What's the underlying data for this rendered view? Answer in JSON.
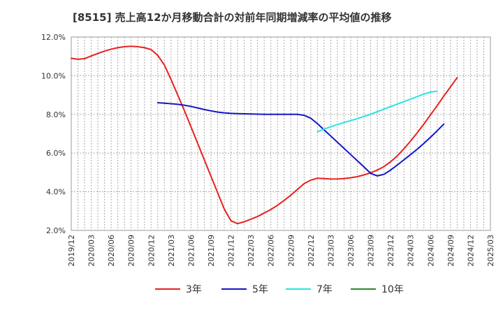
{
  "chart_data": {
    "type": "line",
    "title": "[8515]  売上高12か月移動合計の対前年同期増減率の平均値の推移",
    "xlabel": "",
    "ylabel": "",
    "ylim": [
      2.0,
      12.0
    ],
    "yticks": [
      "2.0%",
      "4.0%",
      "6.0%",
      "8.0%",
      "10.0%",
      "12.0%"
    ],
    "ytick_values": [
      2,
      4,
      6,
      8,
      10,
      12
    ],
    "xticks": [
      "2019/12",
      "2020/03",
      "2020/06",
      "2020/09",
      "2020/12",
      "2021/03",
      "2021/06",
      "2021/09",
      "2021/12",
      "2022/03",
      "2022/06",
      "2022/09",
      "2022/12",
      "2023/03",
      "2023/06",
      "2023/09",
      "2023/12",
      "2024/03",
      "2024/06",
      "2024/09",
      "2024/12",
      "2025/03"
    ],
    "grid": true,
    "legend_position": "bottom",
    "series": [
      {
        "name": "3年",
        "color": "#e8201f",
        "points": [
          [
            "2019/12",
            10.9
          ],
          [
            "2020/01",
            10.85
          ],
          [
            "2020/02",
            10.88
          ],
          [
            "2020/03",
            11.02
          ],
          [
            "2020/04",
            11.15
          ],
          [
            "2020/05",
            11.27
          ],
          [
            "2020/06",
            11.37
          ],
          [
            "2020/07",
            11.45
          ],
          [
            "2020/08",
            11.5
          ],
          [
            "2020/09",
            11.52
          ],
          [
            "2020/10",
            11.5
          ],
          [
            "2020/11",
            11.45
          ],
          [
            "2020/12",
            11.35
          ],
          [
            "2021/01",
            11.05
          ],
          [
            "2021/02",
            10.55
          ],
          [
            "2021/03",
            9.8
          ],
          [
            "2021/04",
            9.0
          ],
          [
            "2021/05",
            8.2
          ],
          [
            "2021/06",
            7.35
          ],
          [
            "2021/07",
            6.5
          ],
          [
            "2021/08",
            5.65
          ],
          [
            "2021/09",
            4.8
          ],
          [
            "2021/10",
            3.95
          ],
          [
            "2021/11",
            3.1
          ],
          [
            "2021/12",
            2.5
          ],
          [
            "2022/01",
            2.35
          ],
          [
            "2022/02",
            2.45
          ],
          [
            "2022/03",
            2.58
          ],
          [
            "2022/04",
            2.72
          ],
          [
            "2022/05",
            2.9
          ],
          [
            "2022/06",
            3.08
          ],
          [
            "2022/07",
            3.3
          ],
          [
            "2022/08",
            3.55
          ],
          [
            "2022/09",
            3.82
          ],
          [
            "2022/10",
            4.12
          ],
          [
            "2022/11",
            4.42
          ],
          [
            "2022/12",
            4.6
          ],
          [
            "2023/01",
            4.7
          ],
          [
            "2023/02",
            4.68
          ],
          [
            "2023/03",
            4.66
          ],
          [
            "2023/04",
            4.66
          ],
          [
            "2023/05",
            4.68
          ],
          [
            "2023/06",
            4.72
          ],
          [
            "2023/07",
            4.78
          ],
          [
            "2023/08",
            4.87
          ],
          [
            "2023/09",
            4.98
          ],
          [
            "2023/10",
            5.12
          ],
          [
            "2023/11",
            5.3
          ],
          [
            "2023/12",
            5.55
          ],
          [
            "2024/01",
            5.85
          ],
          [
            "2024/02",
            6.22
          ],
          [
            "2024/03",
            6.62
          ],
          [
            "2024/04",
            7.05
          ],
          [
            "2024/05",
            7.5
          ],
          [
            "2024/06",
            7.98
          ],
          [
            "2024/07",
            8.45
          ],
          [
            "2024/08",
            8.95
          ],
          [
            "2024/09",
            9.42
          ],
          [
            "2024/10",
            9.9
          ]
        ]
      },
      {
        "name": "5年",
        "color": "#1414c8",
        "points": [
          [
            "2021/01",
            8.6
          ],
          [
            "2021/02",
            8.58
          ],
          [
            "2021/03",
            8.55
          ],
          [
            "2021/04",
            8.52
          ],
          [
            "2021/05",
            8.47
          ],
          [
            "2021/06",
            8.41
          ],
          [
            "2021/07",
            8.33
          ],
          [
            "2021/08",
            8.25
          ],
          [
            "2021/09",
            8.18
          ],
          [
            "2021/10",
            8.12
          ],
          [
            "2021/11",
            8.08
          ],
          [
            "2021/12",
            8.05
          ],
          [
            "2022/01",
            8.04
          ],
          [
            "2022/02",
            8.03
          ],
          [
            "2022/03",
            8.02
          ],
          [
            "2022/04",
            8.01
          ],
          [
            "2022/05",
            8.0
          ],
          [
            "2022/06",
            8.0
          ],
          [
            "2022/07",
            8.0
          ],
          [
            "2022/08",
            8.0
          ],
          [
            "2022/09",
            8.0
          ],
          [
            "2022/10",
            8.0
          ],
          [
            "2022/11",
            7.95
          ],
          [
            "2022/12",
            7.8
          ],
          [
            "2023/01",
            7.52
          ],
          [
            "2023/02",
            7.2
          ],
          [
            "2023/03",
            6.88
          ],
          [
            "2023/04",
            6.56
          ],
          [
            "2023/05",
            6.24
          ],
          [
            "2023/06",
            5.92
          ],
          [
            "2023/07",
            5.6
          ],
          [
            "2023/08",
            5.28
          ],
          [
            "2023/09",
            4.95
          ],
          [
            "2023/10",
            4.82
          ],
          [
            "2023/11",
            4.9
          ],
          [
            "2023/12",
            5.12
          ],
          [
            "2024/01",
            5.38
          ],
          [
            "2024/02",
            5.65
          ],
          [
            "2024/03",
            5.92
          ],
          [
            "2024/04",
            6.2
          ],
          [
            "2024/05",
            6.5
          ],
          [
            "2024/06",
            6.82
          ],
          [
            "2024/07",
            7.15
          ],
          [
            "2024/08",
            7.5
          ]
        ]
      },
      {
        "name": "7年",
        "color": "#24e5e5",
        "points": [
          [
            "2023/01",
            7.1
          ],
          [
            "2023/02",
            7.24
          ],
          [
            "2023/03",
            7.36
          ],
          [
            "2023/04",
            7.47
          ],
          [
            "2023/05",
            7.58
          ],
          [
            "2023/06",
            7.68
          ],
          [
            "2023/07",
            7.78
          ],
          [
            "2023/08",
            7.89
          ],
          [
            "2023/09",
            8.01
          ],
          [
            "2023/10",
            8.14
          ],
          [
            "2023/11",
            8.27
          ],
          [
            "2023/12",
            8.4
          ],
          [
            "2024/01",
            8.53
          ],
          [
            "2024/02",
            8.66
          ],
          [
            "2024/03",
            8.79
          ],
          [
            "2024/04",
            8.92
          ],
          [
            "2024/05",
            9.05
          ],
          [
            "2024/06",
            9.15
          ],
          [
            "2024/07",
            9.2
          ]
        ]
      },
      {
        "name": "10年",
        "color": "#2a8a2a",
        "points": []
      }
    ]
  }
}
